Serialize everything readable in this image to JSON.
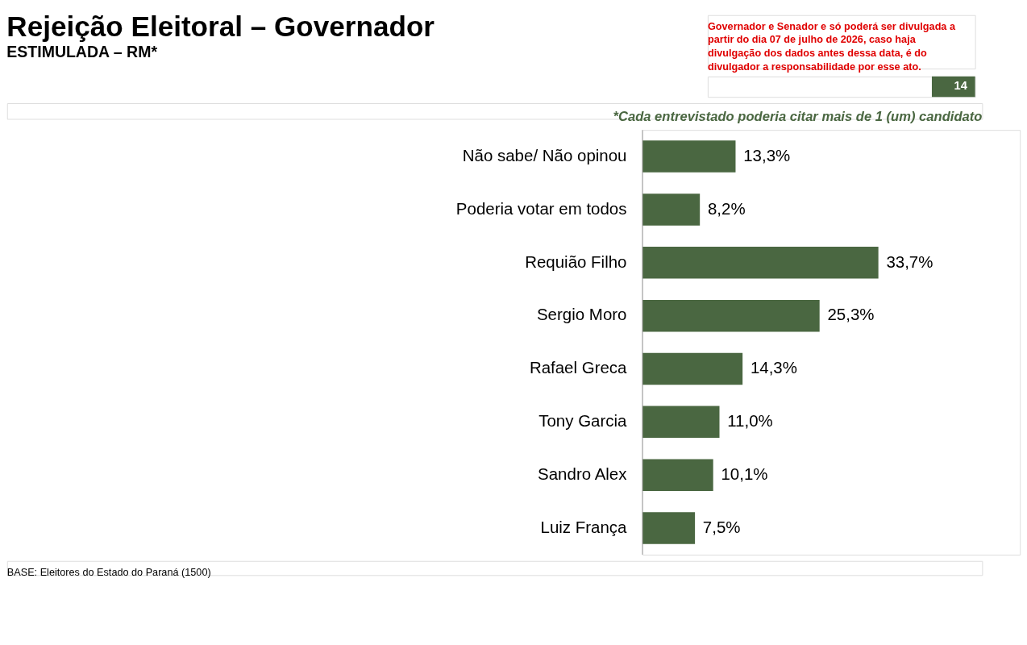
{
  "chart_data": {
    "type": "bar",
    "orientation": "horizontal",
    "title": "Rejeição Eleitoral – Governador",
    "subtitle": "ESTIMULADA – RM*",
    "categories": [
      "Não sabe/ Não opinou",
      "Poderia votar em todos",
      "Requião Filho",
      "Sergio Moro",
      "Rafael Greca",
      "Tony Garcia",
      "Sandro Alex",
      "Luiz França"
    ],
    "values": [
      13.3,
      8.2,
      33.7,
      25.3,
      14.3,
      11.0,
      10.1,
      7.5
    ],
    "value_labels": [
      "13,3%",
      "8,2%",
      "33,7%",
      "25,3%",
      "14,3%",
      "11,0%",
      "10,1%",
      "7,5%"
    ],
    "color": "#4a6741",
    "annotations": [
      "Governador e Senador e",
      "só poderá ser divulgada a partir do dia 07 de julho de 2026, caso haja divulgação dos dados antes dessa data, é do divulgador a responsabilidade por esse ato.",
      "14",
      "*Cada entrevistado poderia citar mais de 1 (um) candidato",
      "BASE: Eleitores do Estado do Paraná (1500)"
    ]
  }
}
